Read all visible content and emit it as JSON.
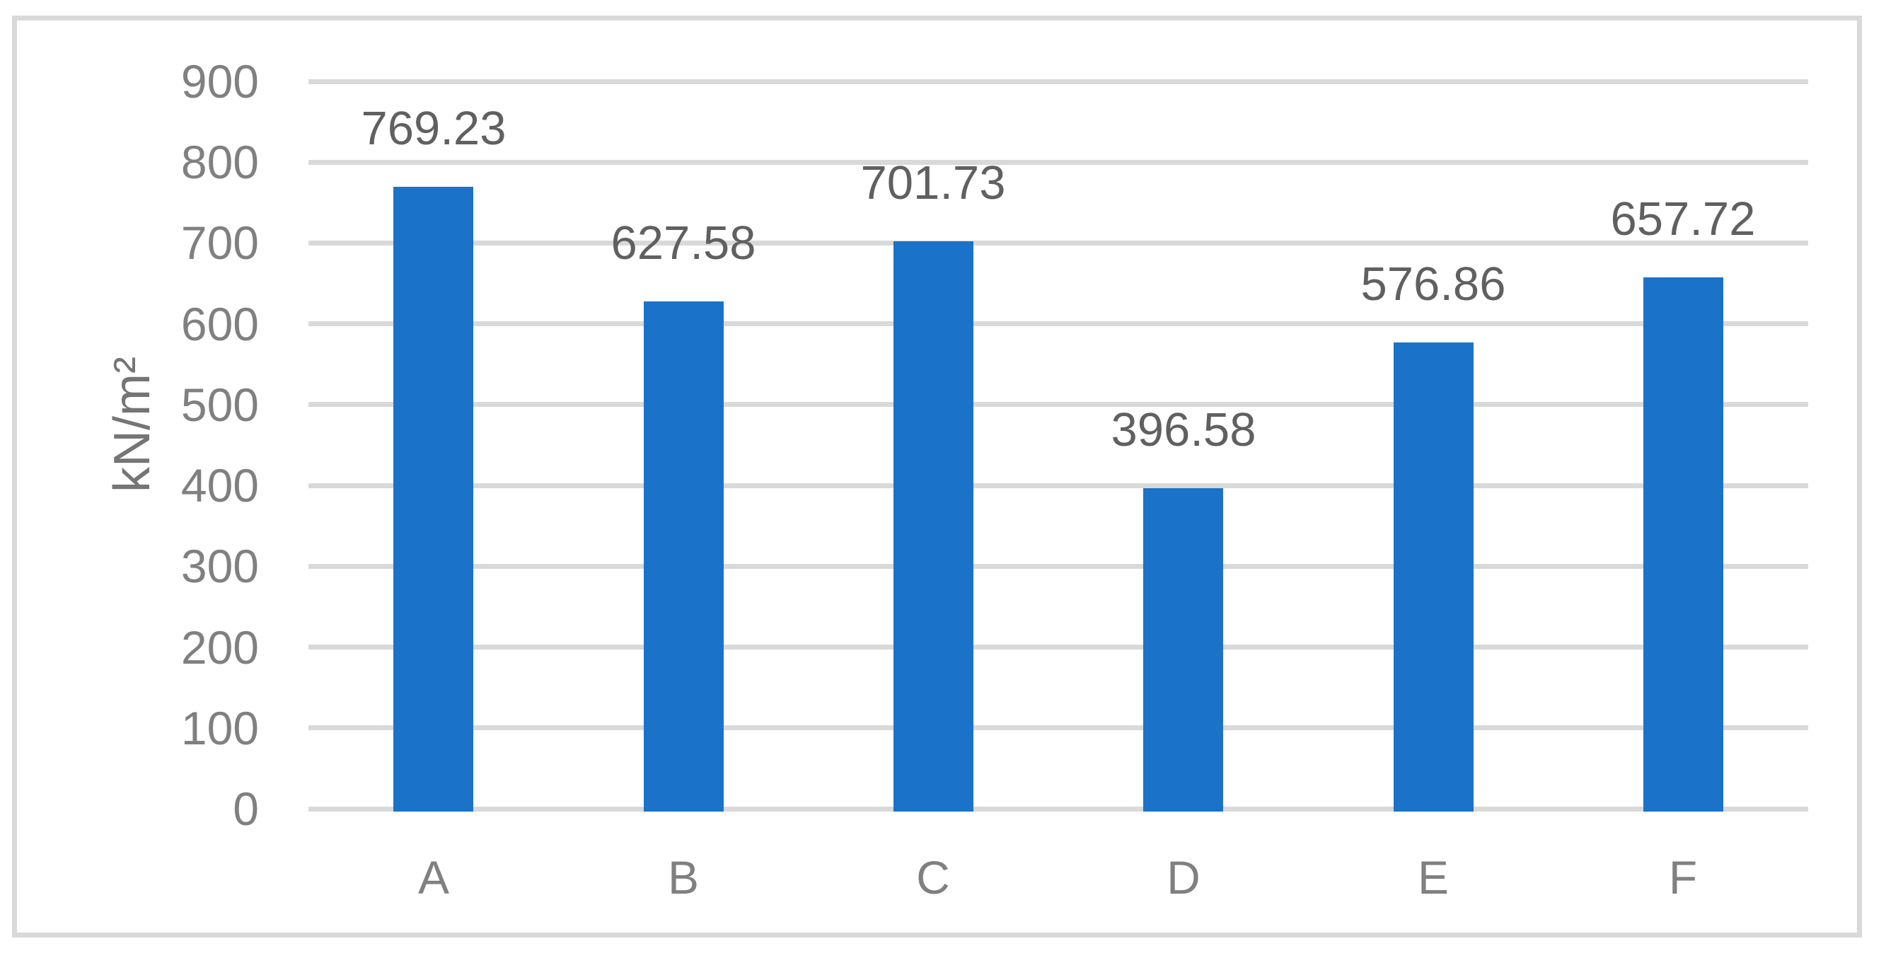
{
  "chart_data": {
    "type": "bar",
    "categories": [
      "A",
      "B",
      "C",
      "D",
      "E",
      "F"
    ],
    "values": [
      769.23,
      627.58,
      701.73,
      396.58,
      576.86,
      657.72
    ],
    "data_labels": [
      "769.23",
      "627.58",
      "701.73",
      "396.58",
      "576.86",
      "657.72"
    ],
    "title": "",
    "xlabel": "",
    "ylabel": "kN/m²",
    "ylim": [
      0,
      900
    ],
    "ytick_step": 100,
    "yticks": [
      0,
      100,
      200,
      300,
      400,
      500,
      600,
      700,
      800,
      900
    ],
    "grid": "horizontal",
    "legend_position": "none",
    "colors": {
      "bar": "#1a73c8",
      "gridline": "#d9d9d9",
      "axis_line": "#d9d9d9",
      "chart_border": "#d9d9d9",
      "tick_label": "#808080",
      "category_label": "#808080",
      "data_label": "#606060",
      "axis_title": "#757575",
      "background": "#ffffff"
    }
  }
}
